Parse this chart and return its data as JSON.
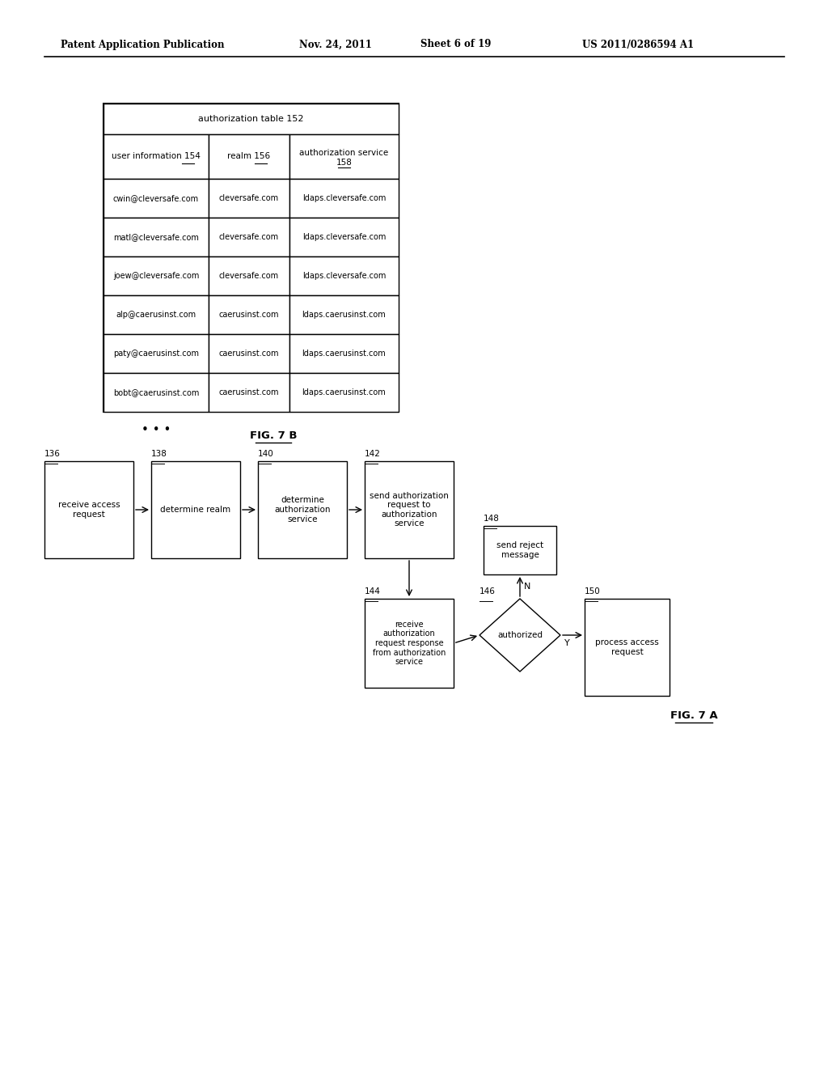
{
  "header_text": "Patent Application Publication",
  "header_date": "Nov. 24, 2011",
  "header_sheet": "Sheet 6 of 19",
  "header_patent": "US 2011/0286594 A1",
  "fig7a_label": "FIG. 7 A",
  "fig7b_label": "FIG. 7 B",
  "table_title": "authorization table 152",
  "table_cols": [
    "user information 154",
    "realm 156",
    "authorization service\n158"
  ],
  "table_rows": [
    [
      "cwin@cleversafe.com",
      "cleversafe.com",
      "ldaps.cleversafe.com"
    ],
    [
      "matl@cleversafe.com",
      "cleversafe.com",
      "ldaps.cleversafe.com"
    ],
    [
      "joew@cleversafe.com",
      "cleversafe.com",
      "ldaps.cleversafe.com"
    ],
    [
      "alp@caerusinst.com",
      "caerusinst.com",
      "ldaps.caerusinst.com"
    ],
    [
      "paty@caerusinst.com",
      "caerusinst.com",
      "ldaps.caerusinst.com"
    ],
    [
      "bobt@caerusinst.com",
      "caerusinst.com",
      "ldaps.caerusinst.com"
    ]
  ],
  "bg_color": "#ffffff"
}
